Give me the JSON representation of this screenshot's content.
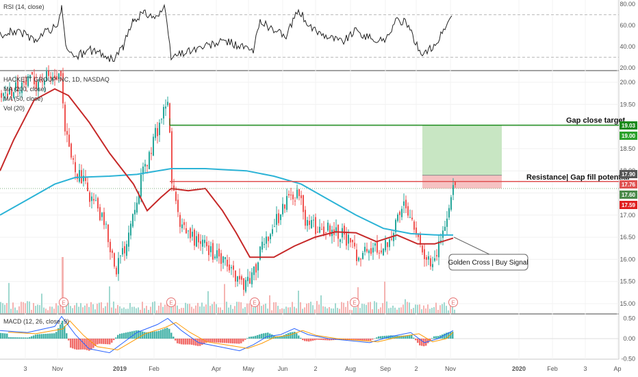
{
  "chart_data": {
    "type": "candlestick",
    "instrument": "HACKETT GROUP INC, 1D, NASDAQ",
    "indicators": {
      "rsi_label": "RSI (14, close)",
      "ma200_label": "MA (200, close)",
      "ma50_label": "MA (50, close)",
      "vol_label": "Vol (20)",
      "macd_label": "MACD (12, 26, close, 9)"
    },
    "price_axis": {
      "ticks": [
        "20.00",
        "19.50",
        "19.00",
        "18.50",
        "18.00",
        "17.50",
        "17.00",
        "16.50",
        "16.00",
        "15.50",
        "15.00"
      ],
      "range": [
        14.8,
        20.3
      ]
    },
    "rsi_axis": {
      "ticks": [
        "80.00",
        "60.00",
        "40.00",
        "20.00"
      ],
      "range": [
        18,
        82
      ]
    },
    "macd_axis": {
      "ticks": [
        "0.50",
        "0.00",
        "-0.50"
      ],
      "range": [
        -0.58,
        0.58
      ]
    },
    "x_ticks": [
      "3",
      "Nov",
      "2019",
      "Feb",
      "Apr",
      "May",
      "Jun",
      "2",
      "Aug",
      "Sep",
      "2",
      "Nov",
      "2020",
      "Feb",
      "3",
      "Ap"
    ],
    "price_tags": [
      {
        "text": "19.03",
        "color": "#1b8a1b"
      },
      {
        "text": "19.00",
        "color": "#2aa12a"
      },
      {
        "text": "17.90",
        "color": "#555555"
      },
      {
        "text": "17.76",
        "color": "#e05252"
      },
      {
        "text": "17.60",
        "color": "#4a8a4a"
      },
      {
        "text": "17.59",
        "color": "#e02020"
      }
    ],
    "annotations": {
      "gap_target": "Gap close target",
      "resistance": "Resistance| Gap fill potential",
      "golden_cross": "Golden Cross | Buy Signal"
    },
    "levels": {
      "gap_close_target": 19.03,
      "resistance": 17.76
    },
    "earnings_marker": "E",
    "colors": {
      "up": "#26a69a",
      "down": "#ef5350",
      "ma200": "#2bb3d6",
      "ma50": "#c62828",
      "target": "#1b8a1b",
      "resistance": "#e05252",
      "macd": "#2962ff",
      "signal": "#ff9800"
    }
  }
}
